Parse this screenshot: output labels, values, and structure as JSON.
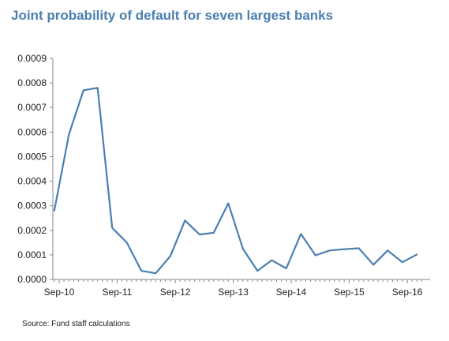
{
  "chart_data": {
    "type": "line",
    "title": "Joint probability of default for seven largest banks",
    "xlabel": "",
    "ylabel": "",
    "ylim": [
      0,
      0.0009
    ],
    "y_ticks": [
      "0.0000",
      "0.0001",
      "0.0002",
      "0.0003",
      "0.0004",
      "0.0005",
      "0.0006",
      "0.0007",
      "0.0008",
      "0.0009"
    ],
    "x_ticks": [
      "Sep-10",
      "Sep-11",
      "Sep-12",
      "Sep-13",
      "Sep-14",
      "Sep-15",
      "Sep-16"
    ],
    "grid": false,
    "legend": "none",
    "line_color": "#4a7fb0",
    "series": [
      {
        "values": [
          {
            "x": "2010-08",
            "y": 0.00028
          },
          {
            "x": "2010-11",
            "y": 0.00059
          },
          {
            "x": "2011-02",
            "y": 0.00077
          },
          {
            "x": "2011-05",
            "y": 0.00078
          },
          {
            "x": "2011-08",
            "y": 0.00021
          },
          {
            "x": "2011-11",
            "y": 0.00015
          },
          {
            "x": "2012-02",
            "y": 3.5e-05
          },
          {
            "x": "2012-05",
            "y": 2.5e-05
          },
          {
            "x": "2012-08",
            "y": 9.5e-05
          },
          {
            "x": "2012-11",
            "y": 0.00024
          },
          {
            "x": "2013-02",
            "y": 0.000183
          },
          {
            "x": "2013-05",
            "y": 0.00019
          },
          {
            "x": "2013-08",
            "y": 0.00031
          },
          {
            "x": "2013-11",
            "y": 0.000125
          },
          {
            "x": "2014-02",
            "y": 3.5e-05
          },
          {
            "x": "2014-05",
            "y": 7.8e-05
          },
          {
            "x": "2014-08",
            "y": 4.5e-05
          },
          {
            "x": "2014-11",
            "y": 0.000185
          },
          {
            "x": "2015-02",
            "y": 9.8e-05
          },
          {
            "x": "2015-05",
            "y": 0.000118
          },
          {
            "x": "2015-08",
            "y": 0.000123
          },
          {
            "x": "2015-11",
            "y": 0.000127
          },
          {
            "x": "2016-02",
            "y": 6e-05
          },
          {
            "x": "2016-05",
            "y": 0.000118
          },
          {
            "x": "2016-08",
            "y": 7e-05
          },
          {
            "x": "2016-11",
            "y": 0.000102
          }
        ]
      }
    ]
  },
  "source_note": "Source: Fund staff calculations"
}
